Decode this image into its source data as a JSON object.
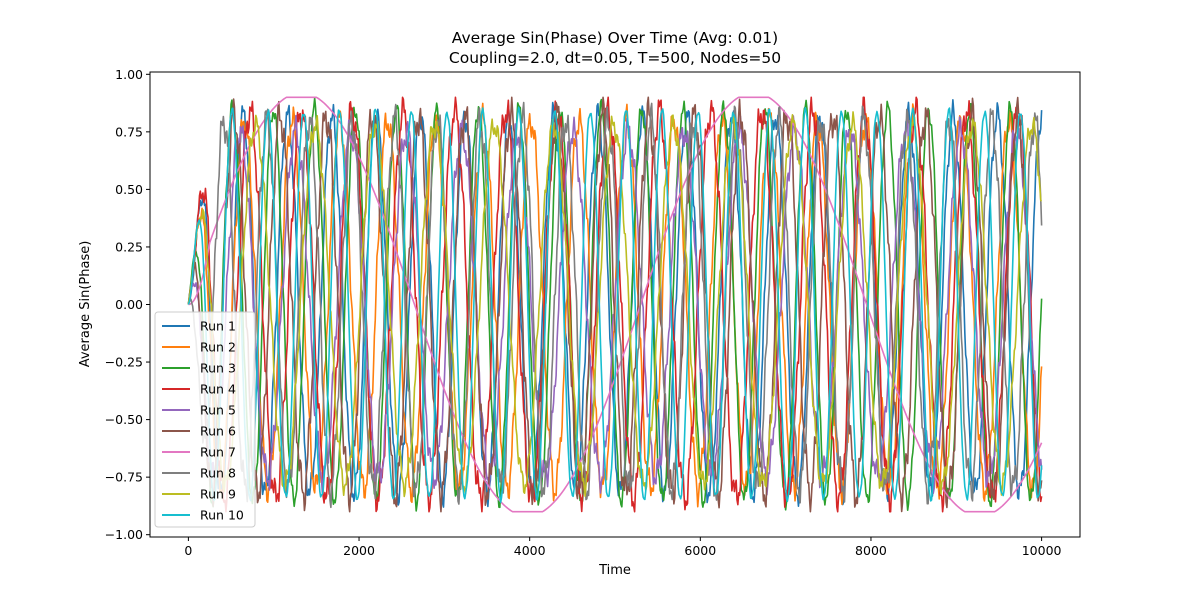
{
  "chart_data": {
    "type": "line",
    "title": "Average Sin(Phase) Over Time (Avg: 0.01)",
    "subtitle": "Coupling=2.0, dt=0.05, T=500, Nodes=50",
    "xlabel": "Time",
    "ylabel": "Average Sin(Phase)",
    "xlim": [
      -450,
      10450
    ],
    "ylim": [
      -1.01,
      1.01
    ],
    "xticks": [
      0,
      2000,
      4000,
      6000,
      8000,
      10000
    ],
    "yticks": [
      -1.0,
      -0.75,
      -0.5,
      -0.25,
      0.0,
      0.25,
      0.5,
      0.75,
      1.0
    ],
    "ytick_labels": [
      "−1.00",
      "−0.75",
      "−0.50",
      "−0.25",
      "0.00",
      "0.25",
      "0.50",
      "0.75",
      "1.00"
    ],
    "xtick_labels": [
      "0",
      "2000",
      "4000",
      "6000",
      "8000",
      "10000"
    ],
    "grid": false,
    "legend_position": "lower-left",
    "series": [
      {
        "name": "Run 1",
        "color": "#1f77b4",
        "amplitude": 0.82,
        "period": 520,
        "phase": 0.1,
        "noise": 0.07
      },
      {
        "name": "Run 2",
        "color": "#ff7f0e",
        "amplitude": 0.8,
        "period": 560,
        "phase": 0.5,
        "noise": 0.08
      },
      {
        "name": "Run 3",
        "color": "#2ca02c",
        "amplitude": 0.85,
        "period": 480,
        "phase": 1.1,
        "noise": 0.05
      },
      {
        "name": "Run 4",
        "color": "#d62728",
        "amplitude": 0.84,
        "period": 600,
        "phase": 0.3,
        "noise": 0.09
      },
      {
        "name": "Run 5",
        "color": "#9467bd",
        "amplitude": 0.75,
        "period": 650,
        "phase": 2.0,
        "noise": 0.08
      },
      {
        "name": "Run 6",
        "color": "#8c564b",
        "amplitude": 0.82,
        "period": 540,
        "phase": 1.6,
        "noise": 0.1
      },
      {
        "name": "Run 7",
        "color": "#e377c2",
        "amplitude": 0.92,
        "period": 5300,
        "phase": 0.0,
        "noise": 0.0
      },
      {
        "name": "Run 8",
        "color": "#7f7f7f",
        "amplitude": 0.8,
        "period": 500,
        "phase": 2.6,
        "noise": 0.09
      },
      {
        "name": "Run 9",
        "color": "#bcbd22",
        "amplitude": 0.78,
        "period": 700,
        "phase": 0.8,
        "noise": 0.06
      },
      {
        "name": "Run 10",
        "color": "#17becf",
        "amplitude": 0.84,
        "period": 420,
        "phase": 0.2,
        "noise": 0.02
      }
    ]
  }
}
